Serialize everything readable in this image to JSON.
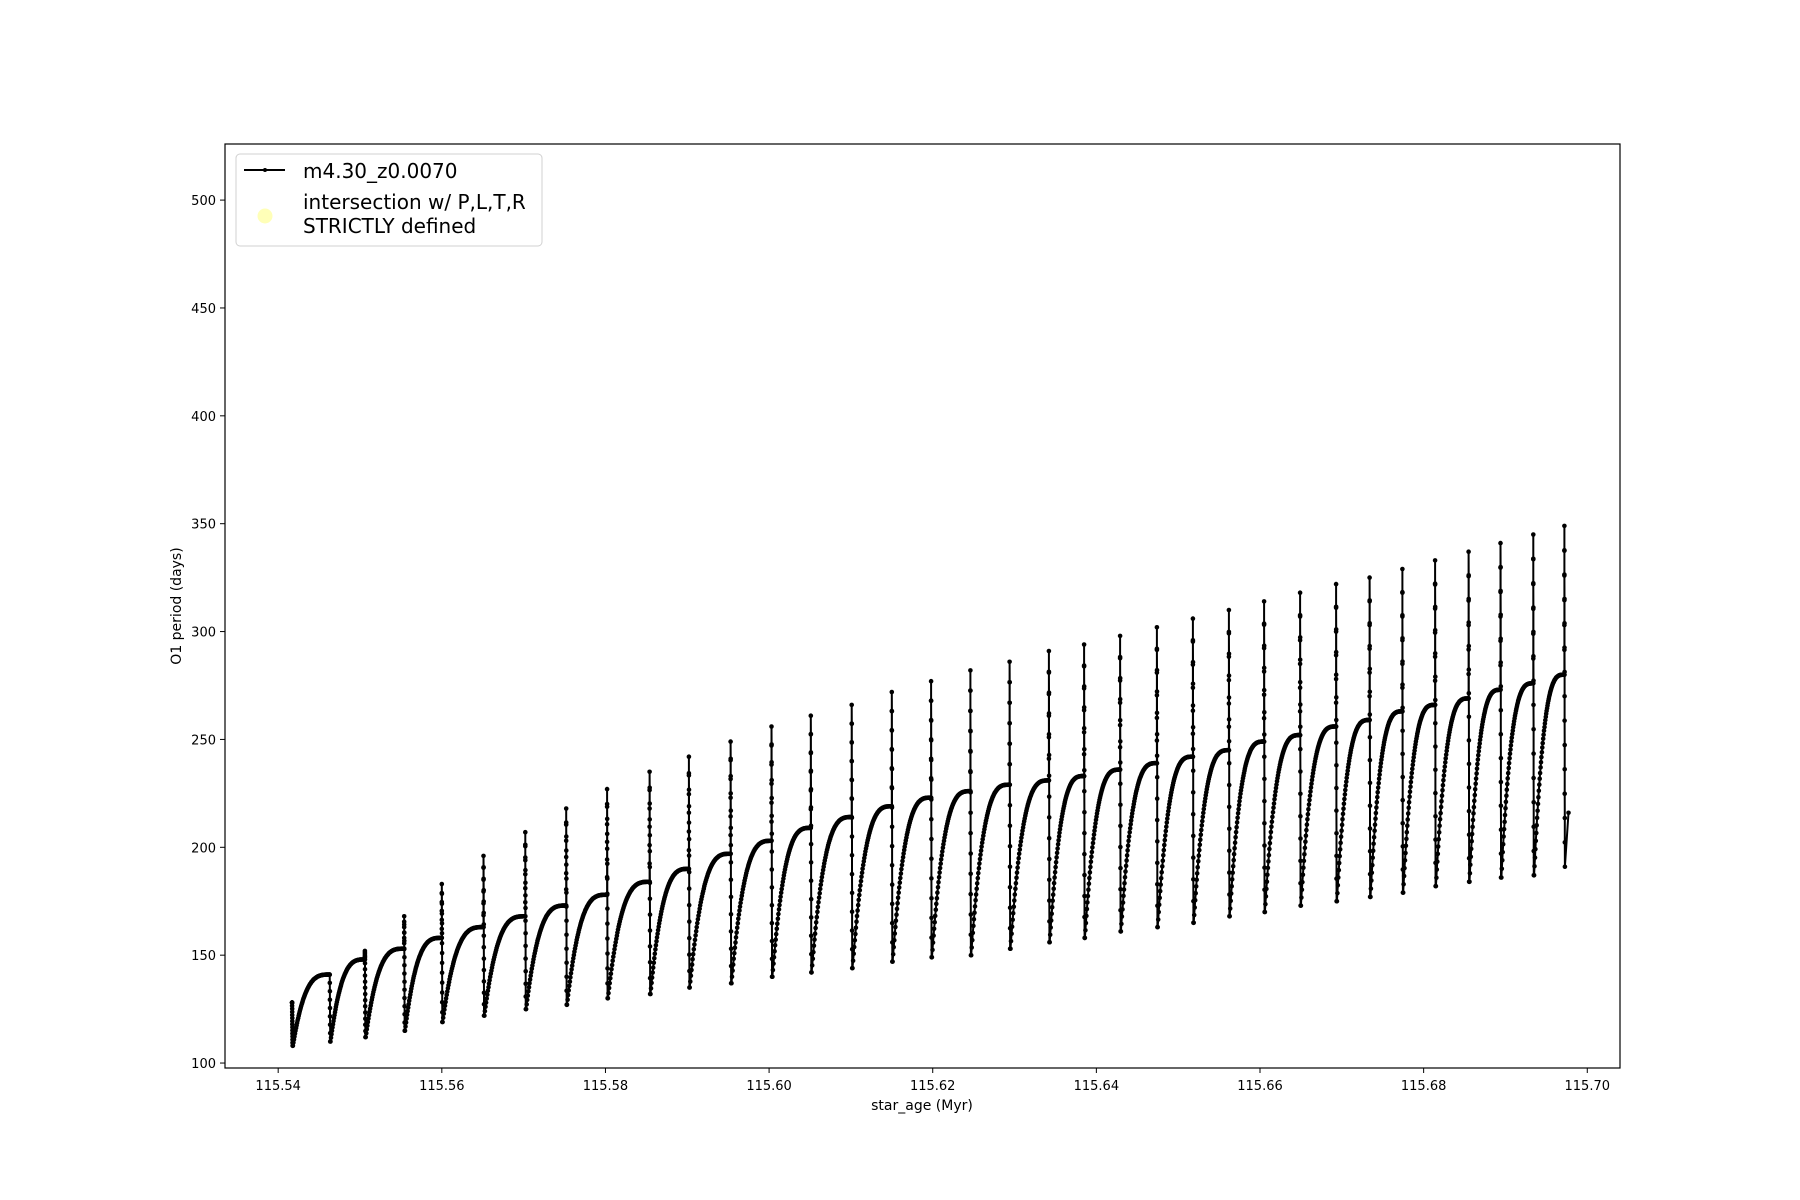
{
  "chart_data": {
    "type": "line",
    "xlabel": "star_age (Myr)",
    "ylabel": "O1 period (days)",
    "xlim": [
      115.5335,
      115.704
    ],
    "ylim": [
      97.7,
      526
    ],
    "xticks": [
      "115.54",
      "115.56",
      "115.58",
      "115.60",
      "115.62",
      "115.64",
      "115.66",
      "115.68",
      "115.70"
    ],
    "yticks": [
      "100",
      "150",
      "200",
      "250",
      "300",
      "350",
      "400",
      "450",
      "500"
    ],
    "grid": false,
    "legend_position": "upper-left",
    "legend": [
      {
        "label": "m4.30_z0.0070",
        "marker": "line-dot",
        "color": "#000000"
      },
      {
        "label": "intersection w/ P,L,T,R\nSTRICTLY defined",
        "label_lines": [
          "intersection w/ P,L,T,R",
          "STRICTLY defined"
        ],
        "marker": "circle",
        "color": "#ffffb0"
      }
    ],
    "series": [
      {
        "name": "m4.30_z0.0070",
        "color": "#000000",
        "cycle_start_myr": [
          115.5417,
          115.5463,
          115.5506,
          115.5554,
          115.56,
          115.5651,
          115.5702,
          115.5752,
          115.5802,
          115.5854,
          115.5902,
          115.5953,
          115.6003,
          115.6051,
          115.6101,
          115.615,
          115.6198,
          115.6246,
          115.6294,
          115.6342,
          115.6385,
          115.6429,
          115.6474,
          115.6518,
          115.6562,
          115.6605,
          115.6649,
          115.6693,
          115.6734,
          115.6774,
          115.6814,
          115.6855,
          115.6894,
          115.6934,
          115.6972
        ],
        "spike_max_days": [
          128,
          null,
          152,
          168,
          183,
          196,
          207,
          218,
          227,
          235,
          242,
          249,
          256,
          261,
          266,
          272,
          277,
          282,
          286,
          291,
          294,
          298,
          302,
          306,
          310,
          314,
          318,
          322,
          325,
          329,
          333,
          337,
          341,
          345,
          349
        ],
        "cycle_min_days": [
          108,
          110,
          112,
          115,
          119,
          122,
          125,
          127,
          130,
          132,
          135,
          137,
          140,
          142,
          144,
          147,
          149,
          150,
          153,
          156,
          158,
          161,
          163,
          165,
          168,
          170,
          173,
          175,
          177,
          179,
          182,
          184,
          186,
          187,
          191
        ],
        "cycle_plateau_days": [
          141,
          148,
          153,
          158,
          163,
          168,
          173,
          178,
          184,
          190,
          197,
          203,
          209,
          214,
          219,
          223,
          226,
          229,
          231,
          233,
          236,
          239,
          242,
          245,
          249,
          252,
          256,
          259,
          263,
          266,
          269,
          273,
          276,
          280
        ],
        "final_point": [
          115.6977,
          216
        ]
      },
      {
        "name": "intersection w/ P,L,T,R STRICTLY defined",
        "color": "#ffffb0",
        "points": []
      }
    ]
  }
}
